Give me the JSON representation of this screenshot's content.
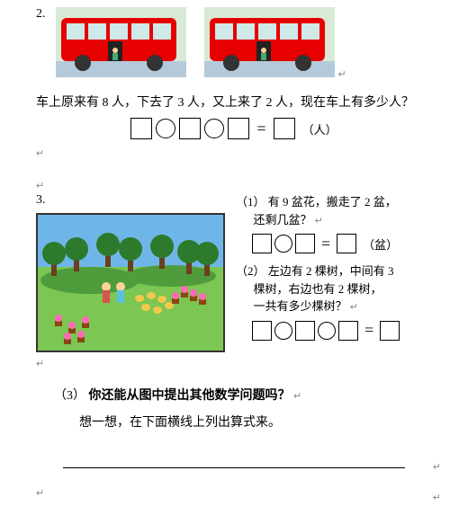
{
  "problem2": {
    "number": "2.",
    "question": "车上原来有 8 人，下去了 3 人，又上来了 2 人，现在车上有多少人？",
    "unit": "（人）",
    "bus": {
      "body_color": "#e60000",
      "window_color": "#cfe8e8",
      "wheel_color": "#333333",
      "road_color": "#b4cadb",
      "sky_color": "#d8ead6"
    },
    "equation_pattern": [
      "box",
      "circ",
      "box",
      "circ",
      "box",
      "eq",
      "box"
    ]
  },
  "problem3": {
    "number": "3.",
    "scene": {
      "sky_color": "#6fb6e8",
      "grass_color": "#7cc653",
      "dark_grass": "#4f9c3d",
      "tree_trunk": "#6b3f1e",
      "tree_leaf": "#2d7a2d",
      "flower_pot": "#8b4513",
      "flower": "#ff69b4",
      "duck": "#f2c84b",
      "person1": "#d9534f",
      "person2": "#5bc0de"
    },
    "sub1": {
      "label": "（1）",
      "line1": "有 9 盆花，搬走了 2 盆，",
      "line2": "还剩几盆？",
      "unit": "（盆）",
      "equation_pattern": [
        "box",
        "circ",
        "box",
        "eq",
        "box"
      ]
    },
    "sub2": {
      "label": "（2）",
      "line1": "左边有 2 棵树，中间有 3",
      "line2": "棵树，右边也有 2 棵树，",
      "line3": "一共有多少棵树？",
      "equation_pattern": [
        "box",
        "circ",
        "box",
        "circ",
        "box",
        "eq",
        "box"
      ]
    },
    "sub3": {
      "label": "（3）",
      "bold_text": "你还能从图中提出其他数学问题吗？",
      "hint": "想一想，在下面横线上列出算式来。"
    }
  },
  "equals_sign": "="
}
